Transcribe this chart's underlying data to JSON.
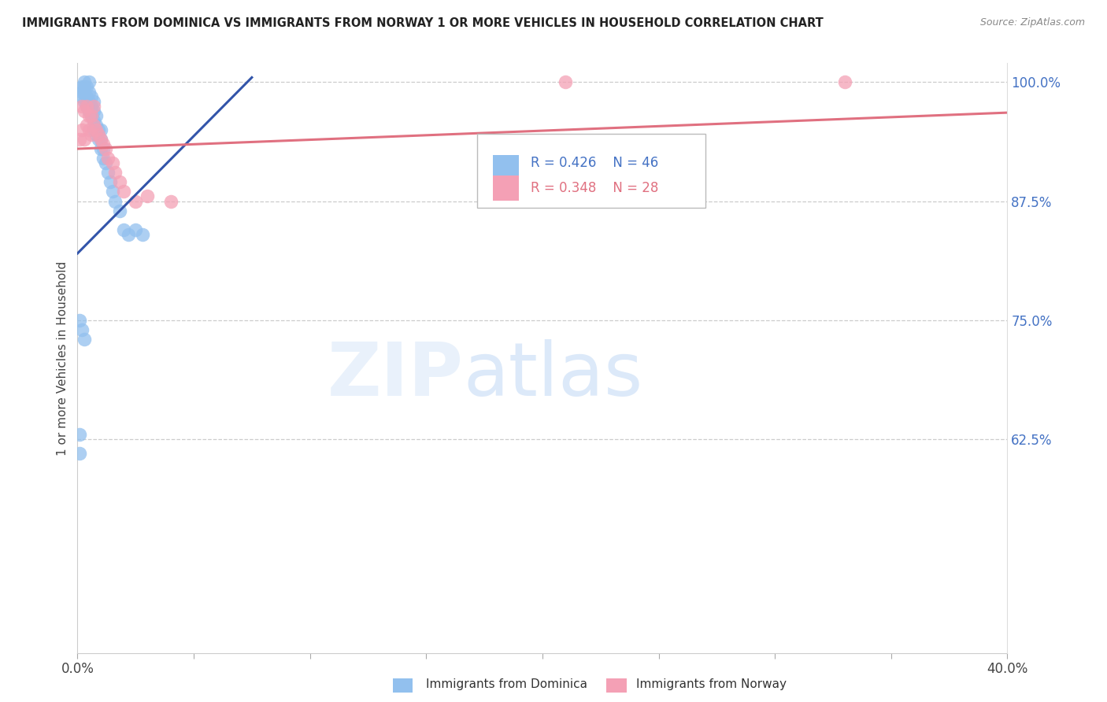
{
  "title": "IMMIGRANTS FROM DOMINICA VS IMMIGRANTS FROM NORWAY 1 OR MORE VEHICLES IN HOUSEHOLD CORRELATION CHART",
  "source": "Source: ZipAtlas.com",
  "ylabel": "1 or more Vehicles in Household",
  "xmin": 0.0,
  "xmax": 0.4,
  "ymin": 0.4,
  "ymax": 1.02,
  "dominica_color": "#92C0EE",
  "norway_color": "#F4A0B5",
  "dominica_line_color": "#3355AA",
  "norway_line_color": "#E07080",
  "dominica_R": 0.426,
  "dominica_N": 46,
  "norway_R": 0.348,
  "norway_N": 28,
  "dominica_x": [
    0.001,
    0.001,
    0.002,
    0.002,
    0.002,
    0.003,
    0.003,
    0.003,
    0.003,
    0.004,
    0.004,
    0.004,
    0.005,
    0.005,
    0.005,
    0.005,
    0.006,
    0.006,
    0.006,
    0.007,
    0.007,
    0.007,
    0.007,
    0.008,
    0.008,
    0.008,
    0.009,
    0.009,
    0.01,
    0.01,
    0.01,
    0.011,
    0.011,
    0.012,
    0.013,
    0.014,
    0.015,
    0.016,
    0.018,
    0.02,
    0.022,
    0.025,
    0.028,
    0.001,
    0.002,
    0.003
  ],
  "dominica_y": [
    0.61,
    0.63,
    0.99,
    0.985,
    0.995,
    0.98,
    0.99,
    0.995,
    1.0,
    0.975,
    0.985,
    0.995,
    0.97,
    0.98,
    0.99,
    1.0,
    0.965,
    0.975,
    0.985,
    0.95,
    0.96,
    0.97,
    0.98,
    0.945,
    0.955,
    0.965,
    0.94,
    0.95,
    0.93,
    0.94,
    0.95,
    0.92,
    0.93,
    0.915,
    0.905,
    0.895,
    0.885,
    0.875,
    0.865,
    0.845,
    0.84,
    0.845,
    0.84,
    0.75,
    0.74,
    0.73
  ],
  "norway_x": [
    0.001,
    0.002,
    0.002,
    0.003,
    0.003,
    0.004,
    0.004,
    0.005,
    0.005,
    0.006,
    0.006,
    0.007,
    0.007,
    0.008,
    0.009,
    0.01,
    0.011,
    0.012,
    0.013,
    0.015,
    0.016,
    0.018,
    0.02,
    0.025,
    0.03,
    0.04,
    0.21,
    0.33
  ],
  "norway_y": [
    0.94,
    0.95,
    0.975,
    0.94,
    0.97,
    0.955,
    0.975,
    0.95,
    0.965,
    0.945,
    0.965,
    0.955,
    0.975,
    0.95,
    0.945,
    0.94,
    0.935,
    0.93,
    0.92,
    0.915,
    0.905,
    0.895,
    0.885,
    0.875,
    0.88,
    0.875,
    1.0,
    1.0
  ],
  "dom_line_x0": 0.0,
  "dom_line_x1": 0.075,
  "dom_line_y0": 0.82,
  "dom_line_y1": 1.005,
  "nor_line_x0": 0.0,
  "nor_line_x1": 0.4,
  "nor_line_y0": 0.93,
  "nor_line_y1": 0.968,
  "ytick_vals": [
    0.625,
    0.75,
    0.875,
    1.0
  ],
  "ytick_labels": [
    "62.5%",
    "75.0%",
    "87.5%",
    "100.0%"
  ],
  "xtick_vals": [
    0.0,
    0.05,
    0.1,
    0.15,
    0.2,
    0.25,
    0.3,
    0.35,
    0.4
  ],
  "xtick_labels": [
    "0.0%",
    "",
    "",
    "",
    "",
    "",
    "",
    "",
    "40.0%"
  ]
}
